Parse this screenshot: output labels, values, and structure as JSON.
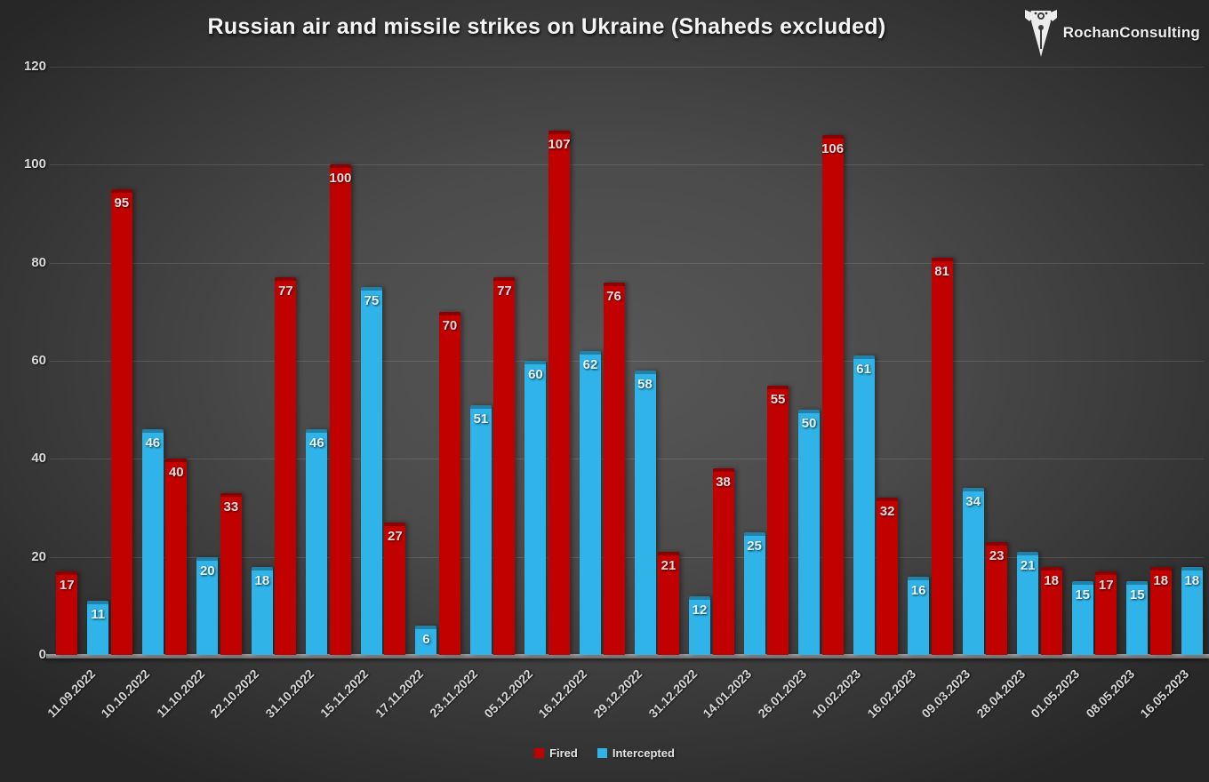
{
  "title": "Russian air and missile strikes on Ukraine (Shaheds excluded)",
  "logo": {
    "icon": "pen-nib-logo-icon",
    "text": "RochanConsulting"
  },
  "colors": {
    "background_center": "#575757",
    "background_edge": "#272727",
    "fired": "#c10000",
    "intercepted": "#2fb3e8",
    "fired_label_text": "#f2dada",
    "intercepted_label_text": "#e6f5fd",
    "axis_text": "#d9d9d9"
  },
  "chart_data": {
    "type": "bar",
    "title": "Russian air and missile strikes on Ukraine (Shaheds excluded)",
    "categories": [
      "11.09.2022",
      "10.10.2022",
      "11.10.2022",
      "22.10.2022",
      "31.10.2022",
      "15.11.2022",
      "17.11.2022",
      "23.11.2022",
      "05.12.2022",
      "16.12.2022",
      "29.12.2022",
      "31.12.2022",
      "14.01.2023",
      "26.01.2023",
      "10.02.2023",
      "16.02.2023",
      "09.03.2023",
      "28.04.2023",
      "01.05.2023",
      "08.05.2023",
      "16.05.2023"
    ],
    "series": [
      {
        "name": "Fired",
        "color": "#c10000",
        "label_color": "#f2dada",
        "values": [
          17,
          95,
          40,
          33,
          77,
          100,
          27,
          70,
          77,
          107,
          76,
          21,
          38,
          55,
          106,
          32,
          81,
          23,
          18,
          17,
          18
        ]
      },
      {
        "name": "Intercepted",
        "color": "#2fb3e8",
        "label_color": "#e6f5fd",
        "values": [
          11,
          46,
          20,
          18,
          46,
          75,
          6,
          51,
          60,
          62,
          58,
          12,
          25,
          50,
          61,
          16,
          34,
          21,
          15,
          15,
          18
        ]
      }
    ],
    "xlabel": "",
    "ylabel": "",
    "ylim": [
      0,
      120
    ],
    "yticks": [
      0,
      20,
      40,
      60,
      80,
      100,
      120
    ],
    "grid": true,
    "data_labels": "inside-end",
    "legend_position": "bottom"
  }
}
